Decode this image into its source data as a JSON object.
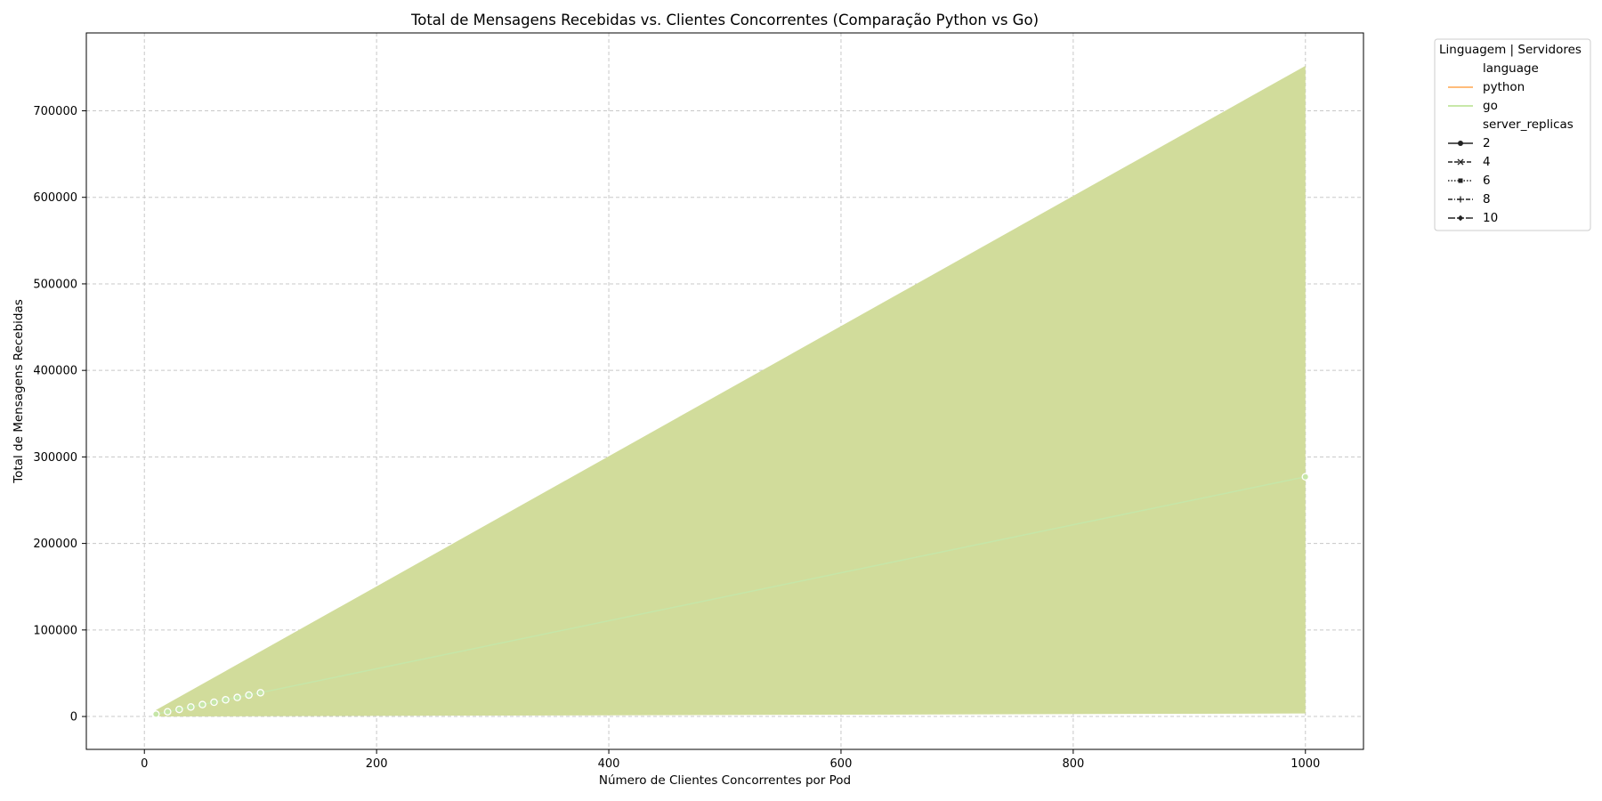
{
  "chart_data": {
    "type": "line",
    "title": "Total de Mensagens Recebidas vs. Clientes Concorrentes (Comparação Python vs Go)",
    "xlabel": "Número de Clientes Concorrentes por Pod",
    "ylabel": "Total de Mensagens Recebidas",
    "xlim": [
      -50,
      1050
    ],
    "ylim": [
      -38000,
      790000
    ],
    "xticks": [
      0,
      200,
      400,
      600,
      800,
      1000
    ],
    "yticks": [
      0,
      100000,
      200000,
      300000,
      400000,
      500000,
      600000,
      700000
    ],
    "grid": true,
    "legend": {
      "title": "Linguagem | Servidores",
      "placement": "outside-top-right",
      "entries": [
        {
          "label": "language",
          "kind": "header"
        },
        {
          "label": "python",
          "kind": "line",
          "color": "#ffa54f"
        },
        {
          "label": "go",
          "kind": "line",
          "color": "#b6e08c"
        },
        {
          "label": "server_replicas",
          "kind": "header"
        },
        {
          "label": "2",
          "kind": "style",
          "dash": "solid",
          "marker": "circle"
        },
        {
          "label": "4",
          "kind": "style",
          "dash": "dashed",
          "marker": "x"
        },
        {
          "label": "6",
          "kind": "style",
          "dash": "dotted",
          "marker": "square"
        },
        {
          "label": "8",
          "kind": "style",
          "dash": "dashdot",
          "marker": "plus"
        },
        {
          "label": "10",
          "kind": "style",
          "dash": "longdash",
          "marker": "diamond"
        }
      ]
    },
    "band": {
      "color": "#d1dc9b",
      "x": [
        10,
        1000
      ],
      "upper": [
        7500,
        752000
      ],
      "lower": [
        0,
        3500
      ]
    },
    "series": [
      {
        "name": "go",
        "color": "#c6e6a8",
        "marker": "circle",
        "x": [
          10,
          20,
          30,
          40,
          50,
          60,
          70,
          80,
          90,
          100,
          1000
        ],
        "y": [
          2700,
          5500,
          8200,
          11000,
          13800,
          16500,
          19300,
          22000,
          24800,
          27500,
          277000
        ]
      }
    ]
  }
}
